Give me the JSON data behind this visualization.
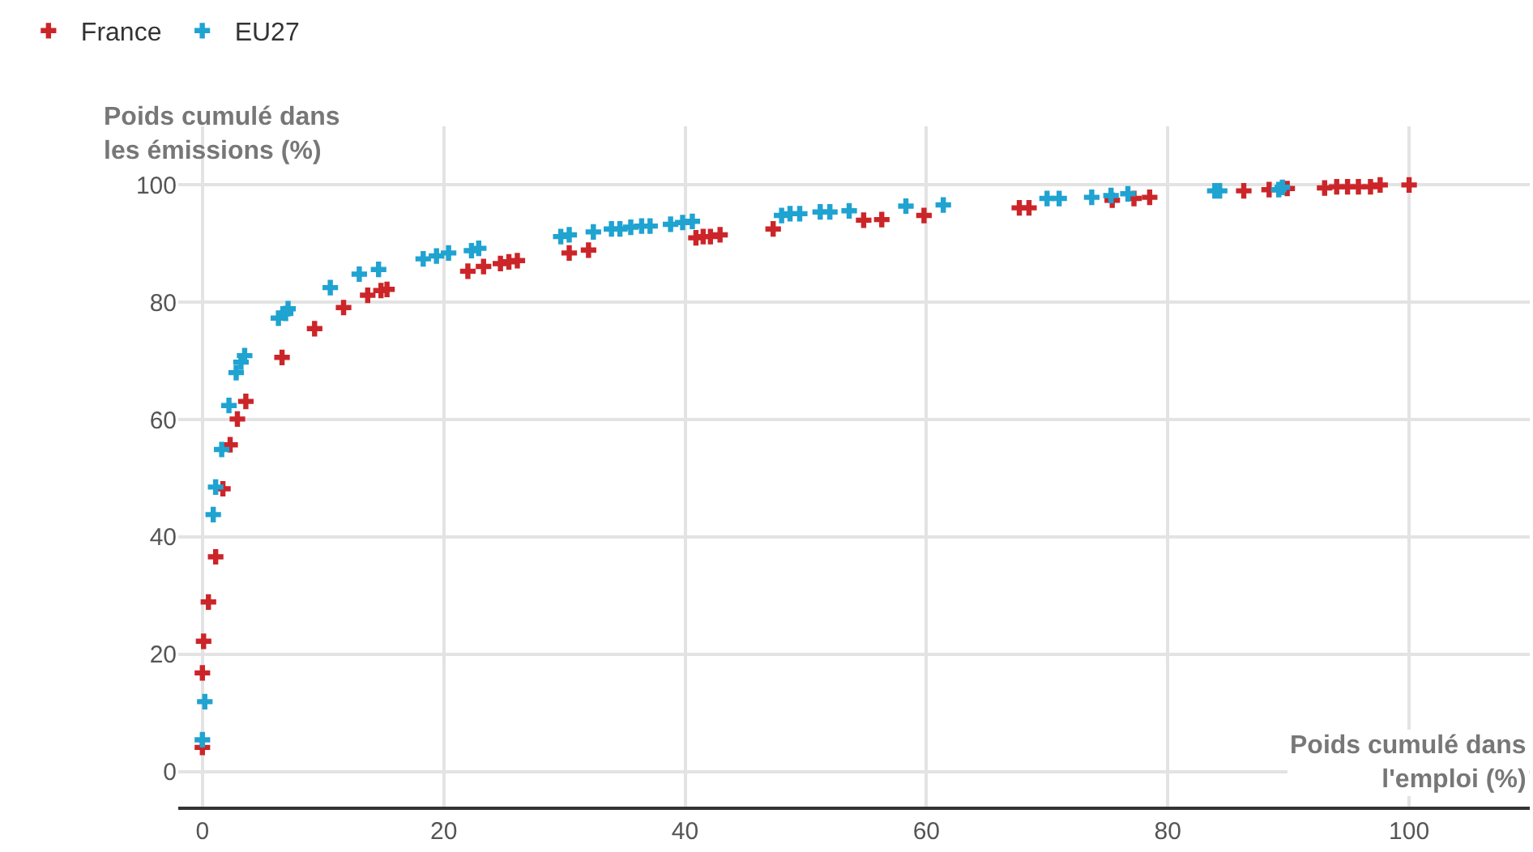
{
  "chart_data": {
    "type": "scatter",
    "xlabel": "Poids cumulé dans\nl'emploi (%)",
    "ylabel": "Poids cumulé dans\nles émissions (%)",
    "xlim": [
      -2,
      110
    ],
    "ylim": [
      -6,
      110
    ],
    "xticks": [
      0,
      20,
      40,
      60,
      80,
      100
    ],
    "yticks": [
      0,
      20,
      40,
      60,
      80,
      100
    ],
    "grid": true,
    "legend": "top left",
    "marker": "cross",
    "series": [
      {
        "name": "France",
        "color": "#cc2529",
        "x": [
          0,
          0,
          0.1,
          0.5,
          1.1,
          1.7,
          2.3,
          2.9,
          3.6,
          6.6,
          9.3,
          11.7,
          13.7,
          14.8,
          15.3,
          22,
          23.3,
          24.7,
          25.4,
          26.1,
          30.4,
          32,
          40.9,
          41.5,
          42.1,
          42.9,
          47.3,
          54.8,
          56.3,
          59.8,
          67.7,
          68.5,
          75.4,
          77.2,
          78.5,
          86.3,
          88.4,
          89.9,
          93,
          94,
          94.9,
          95.8,
          96.8,
          97.6,
          100
        ],
        "values": [
          4.1,
          16.8,
          22.2,
          28.9,
          36.6,
          48.2,
          55.7,
          60.1,
          63.1,
          70.6,
          75.5,
          79.1,
          81.2,
          82,
          82.2,
          85.3,
          86.1,
          86.6,
          86.9,
          87.1,
          88.4,
          88.9,
          91,
          91.2,
          91.2,
          91.5,
          92.5,
          94,
          94.1,
          94.8,
          96.1,
          96.1,
          97.4,
          97.7,
          97.9,
          99,
          99.2,
          99.4,
          99.5,
          99.7,
          99.7,
          99.7,
          99.7,
          100,
          100
        ]
      },
      {
        "name": "EU27",
        "color": "#1fa3d1",
        "x": [
          0,
          0.2,
          0.9,
          1.1,
          1.6,
          2.2,
          2.8,
          3.2,
          3.5,
          6.3,
          6.9,
          7.1,
          10.6,
          13,
          14.6,
          18.3,
          19.4,
          20.4,
          22.3,
          22.9,
          29.7,
          30.4,
          32.4,
          33.9,
          34.6,
          35.5,
          36.4,
          37.1,
          38.8,
          39.8,
          40.6,
          48,
          48.7,
          49.5,
          51.2,
          52,
          53.6,
          58.3,
          61.4,
          70,
          71,
          73.7,
          75.3,
          76.7,
          83.9,
          84.3,
          89.2,
          89.5
        ],
        "values": [
          5.4,
          11.9,
          43.8,
          48.5,
          54.9,
          62.4,
          68,
          69.8,
          70.9,
          77.3,
          78.1,
          78.9,
          82.5,
          84.8,
          85.6,
          87.4,
          87.9,
          88.4,
          88.8,
          89.2,
          91.2,
          91.5,
          92,
          92.5,
          92.5,
          92.8,
          93,
          93,
          93.3,
          93.6,
          93.8,
          94.8,
          95.1,
          95.1,
          95.4,
          95.4,
          95.6,
          96.4,
          96.6,
          97.7,
          97.7,
          97.9,
          98.2,
          98.5,
          99,
          99,
          99.2,
          99.6
        ]
      }
    ]
  }
}
